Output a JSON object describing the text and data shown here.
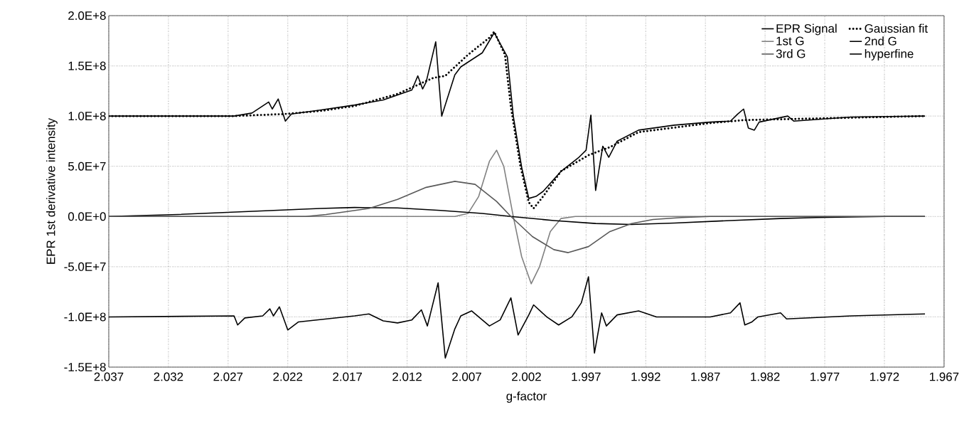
{
  "chart_data": {
    "type": "line",
    "xlabel": "g-factor",
    "ylabel": "EPR  1st derivative intensity",
    "xlim": [
      2.037,
      1.967
    ],
    "xticks": [
      2.037,
      2.032,
      2.027,
      2.022,
      2.017,
      2.012,
      2.007,
      2.002,
      1.997,
      1.992,
      1.987,
      1.982,
      1.977,
      1.972,
      1.967
    ],
    "ylim": [
      -150000000.0,
      200000000.0
    ],
    "yticks": [
      {
        "value": -150000000.0,
        "label": "-1.5E+8"
      },
      {
        "value": -100000000.0,
        "label": "-1.0E+8"
      },
      {
        "value": -50000000.0,
        "label": "-5.0E+7"
      },
      {
        "value": 0,
        "label": "0.0E+0"
      },
      {
        "value": 50000000.0,
        "label": "5.0E+7"
      },
      {
        "value": 100000000.0,
        "label": "1.0E+8"
      },
      {
        "value": 150000000.0,
        "label": "1.5E+8"
      },
      {
        "value": 200000000.0,
        "label": "2.0E+8"
      }
    ],
    "grid": true,
    "legend": "top right",
    "series": [
      {
        "name": "EPR Signal",
        "color": "#000000",
        "line_style": "solid",
        "x": [
          2.037,
          2.0265,
          2.025,
          2.0236,
          2.0233,
          2.0228,
          2.0222,
          2.0217,
          2.0193,
          2.0164,
          2.014,
          2.0128,
          2.0116,
          2.0111,
          2.0107,
          2.0104,
          2.0096,
          2.0091,
          2.008,
          2.0075,
          2.0057,
          2.0047,
          2.0036,
          2.0031,
          2.0024,
          2.0018,
          2.0012,
          2.0006,
          1.9991,
          1.9976,
          1.997,
          1.9966,
          1.9962,
          1.9956,
          1.9951,
          1.9944,
          1.9926,
          1.9896,
          1.9866,
          1.9849,
          1.9843,
          1.9838,
          1.9834,
          1.9829,
          1.9825,
          1.9801,
          1.9796,
          1.9748,
          1.9686
        ],
        "values": [
          100000000.0,
          100000000.0,
          103000000.0,
          114000000.0,
          107000000.0,
          117000000.0,
          95000000.0,
          102000000.0,
          106000000.0,
          111000000.0,
          116000000.0,
          121000000.0,
          126000000.0,
          140000000.0,
          127000000.0,
          134000000.0,
          174000000.0,
          100000000.0,
          141000000.0,
          149000000.0,
          163000000.0,
          183000000.0,
          159000000.0,
          100000000.0,
          49000000.0,
          18000000.0,
          20000000.0,
          25000000.0,
          45000000.0,
          59000000.0,
          66000000.0,
          101000000.0,
          26000000.0,
          70000000.0,
          59000000.0,
          75000000.0,
          86000000.0,
          91000000.0,
          94000000.0,
          95000000.0,
          102000000.0,
          107000000.0,
          88000000.0,
          86000000.0,
          94000000.0,
          100000000.0,
          95000000.0,
          99000000.0,
          100000000.0
        ]
      },
      {
        "name": "Gaussian fit",
        "color": "#000000",
        "line_style": "dotted",
        "x": [
          2.037,
          2.0265,
          2.0223,
          2.0193,
          2.0164,
          2.0128,
          2.0098,
          2.0088,
          2.0069,
          2.0051,
          2.0047,
          2.0038,
          2.0033,
          2.0025,
          2.0018,
          2.0014,
          2.0006,
          1.9991,
          1.9968,
          1.995,
          1.9926,
          1.9866,
          1.9837,
          1.9686
        ],
        "values": [
          100000000.0,
          100000000.0,
          102000000.0,
          105000000.0,
          110000000.0,
          122000000.0,
          138000000.0,
          140000000.0,
          161000000.0,
          178000000.0,
          184000000.0,
          161000000.0,
          109000000.0,
          50000000.0,
          14000000.0,
          8000000.0,
          20000000.0,
          45000000.0,
          61000000.0,
          69000000.0,
          84000000.0,
          93000000.0,
          96000000.0,
          100000000.0
        ]
      },
      {
        "name": "1st G",
        "color": "#808080",
        "line_style": "solid",
        "x": [
          2.037,
          2.008,
          2.0069,
          2.006,
          2.0051,
          2.0045,
          2.0039,
          2.0031,
          2.0024,
          2.0016,
          2.0009,
          2.0,
          1.9991,
          1.9979,
          1.9686
        ],
        "values": [
          0,
          0,
          3000000.0,
          20000000.0,
          55000000.0,
          66000000.0,
          50000000.0,
          0,
          -40000000.0,
          -67000000.0,
          -50000000.0,
          -15000000.0,
          -2000000.0,
          0,
          0
        ]
      },
      {
        "name": "2nd G",
        "color": "#000000",
        "line_style": "solid",
        "x": [
          2.037,
          2.0312,
          2.0253,
          2.0193,
          2.0164,
          2.0128,
          2.0092,
          2.0057,
          2.0033,
          1.9997,
          1.9962,
          1.9932,
          1.9896,
          1.9849,
          1.9807,
          1.9777,
          1.9718,
          1.9686
        ],
        "values": [
          0,
          2000000.0,
          5000000.0,
          8000000.0,
          9000000.0,
          8500000.0,
          6000000.0,
          3000000.0,
          0,
          -4000000.0,
          -7000000.0,
          -8000000.0,
          -6500000.0,
          -4000000.0,
          -2000000.0,
          -1000000.0,
          0,
          0
        ]
      },
      {
        "name": "3rd G",
        "color": "#595959",
        "line_style": "solid",
        "x": [
          2.037,
          2.0205,
          2.0188,
          2.0152,
          2.0128,
          2.0104,
          2.008,
          2.0063,
          2.0045,
          2.0033,
          2.0015,
          1.9997,
          1.9985,
          1.9968,
          1.995,
          1.9932,
          1.9914,
          1.989,
          1.9866,
          1.9686
        ],
        "values": [
          0,
          0,
          2000000.0,
          8000000.0,
          17000000.0,
          29000000.0,
          35000000.0,
          32000000.0,
          15000000.0,
          0,
          -20000000.0,
          -33000000.0,
          -36000000.0,
          -30000000.0,
          -15000000.0,
          -7000000.0,
          -3000000.0,
          -1000000.0,
          0,
          0
        ]
      },
      {
        "name": "hyperfine",
        "color": "#000000",
        "line_style": "solid",
        "x": [
          2.037,
          2.0265,
          2.0262,
          2.0256,
          2.0241,
          2.0235,
          2.0232,
          2.0227,
          2.0223,
          2.022,
          2.0211,
          2.0164,
          2.0152,
          2.014,
          2.0128,
          2.0116,
          2.0108,
          2.0103,
          2.0094,
          2.0088,
          2.008,
          2.0075,
          2.0066,
          2.0051,
          2.0042,
          2.0033,
          2.0027,
          2.0018,
          2.0014,
          2.0003,
          1.9993,
          1.9982,
          1.9974,
          1.9968,
          1.9963,
          1.9957,
          1.9953,
          1.9944,
          1.9926,
          1.9911,
          1.9866,
          1.9849,
          1.9841,
          1.9837,
          1.9831,
          1.9826,
          1.9807,
          1.9802,
          1.9748,
          1.9686
        ],
        "values": [
          -100000000.0,
          -99000000.0,
          -108000000.0,
          -101000000.0,
          -99000000.0,
          -92000000.0,
          -99000000.0,
          -90000000.0,
          -103000000.0,
          -113000000.0,
          -105000000.0,
          -99000000.0,
          -97000000.0,
          -104000000.0,
          -106000000.0,
          -103000000.0,
          -93000000.0,
          -109000000.0,
          -66000000.0,
          -141000000.0,
          -112000000.0,
          -99000000.0,
          -94000000.0,
          -109000000.0,
          -103000000.0,
          -81000000.0,
          -118000000.0,
          -98000000.0,
          -88000000.0,
          -100000000.0,
          -108000000.0,
          -100000000.0,
          -86000000.0,
          -60000000.0,
          -136000000.0,
          -96000000.0,
          -109000000.0,
          -98000000.0,
          -94000000.0,
          -100000000.0,
          -100000000.0,
          -96000000.0,
          -86000000.0,
          -108000000.0,
          -105000000.0,
          -100000000.0,
          -96000000.0,
          -102000000.0,
          -99000000.0,
          -97000000.0
        ]
      }
    ]
  }
}
